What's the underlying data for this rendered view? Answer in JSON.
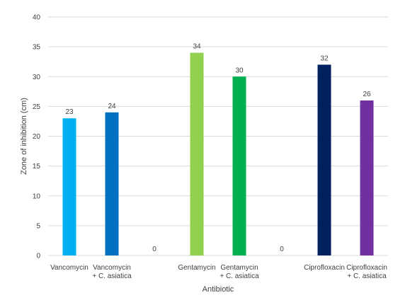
{
  "chart_data": {
    "type": "bar",
    "categories": [
      [
        "Vancomycin"
      ],
      [
        "Vancomycin",
        "+ C. asiatica"
      ],
      [
        ""
      ],
      [
        "Gentamycin"
      ],
      [
        "Gentamycin",
        "+ C. asiatica"
      ],
      [
        ""
      ],
      [
        "Ciprofloxacin"
      ],
      [
        "Ciprofloxacin",
        "+ C. asiatica"
      ]
    ],
    "values": [
      23,
      24,
      0,
      34,
      30,
      0,
      32,
      26
    ],
    "data_labels": [
      "23",
      "24",
      "0",
      "34",
      "30",
      "0",
      "32",
      "26"
    ],
    "colors": [
      "#00b0f0",
      "#0070c0",
      "#ffffff",
      "#92d050",
      "#00b050",
      "#ffffff",
      "#002060",
      "#7030a0"
    ],
    "xlabel": "Antibiotic",
    "ylabel": "Zone of inhibition (cm)",
    "ylim": [
      0,
      40
    ],
    "yticks": [
      "0",
      "5",
      "10",
      "15",
      "20",
      "25",
      "30",
      "35",
      "40"
    ],
    "grid": true,
    "legend": "none"
  }
}
